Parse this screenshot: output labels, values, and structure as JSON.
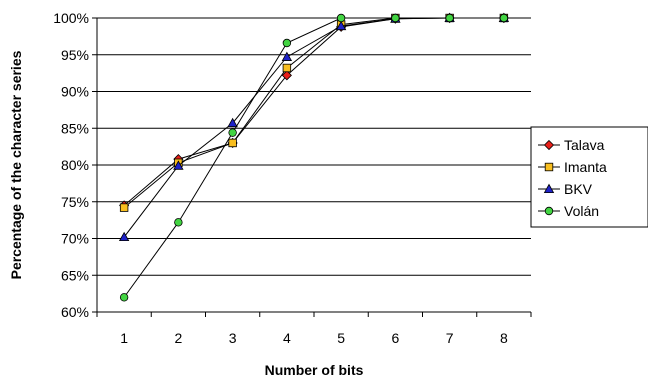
{
  "chart_data": {
    "type": "line",
    "xlabel": "Number of bits",
    "ylabel": "Percentage of the character series",
    "x": [
      1,
      2,
      3,
      4,
      5,
      6,
      7,
      8
    ],
    "x_tick_labels": [
      "1",
      "2",
      "3",
      "4",
      "5",
      "6",
      "7",
      "8"
    ],
    "ylim": [
      60,
      100
    ],
    "y_ticks": [
      60,
      65,
      70,
      75,
      80,
      85,
      90,
      95,
      100
    ],
    "y_tick_labels": [
      "60%",
      "65%",
      "70%",
      "75%",
      "80%",
      "85%",
      "90%",
      "95%",
      "100%"
    ],
    "grid": "horizontal",
    "legend_position": "right",
    "series": [
      {
        "name": "Talava",
        "marker": "diamond",
        "color": "#e8201a",
        "values": [
          74.5,
          80.8,
          83.0,
          92.2,
          98.8,
          99.9,
          100,
          100
        ]
      },
      {
        "name": "Imanta",
        "marker": "square",
        "color": "#f8be1f",
        "values": [
          74.2,
          80.3,
          83.0,
          93.2,
          99.1,
          100,
          100,
          100
        ]
      },
      {
        "name": "BKV",
        "marker": "triangle",
        "color": "#1e22c8",
        "values": [
          70.2,
          79.9,
          85.7,
          94.7,
          98.9,
          99.9,
          100,
          100
        ]
      },
      {
        "name": "Volán",
        "marker": "circle",
        "color": "#42d442",
        "values": [
          62.0,
          72.2,
          84.4,
          96.6,
          100,
          100,
          100,
          100
        ]
      }
    ]
  }
}
